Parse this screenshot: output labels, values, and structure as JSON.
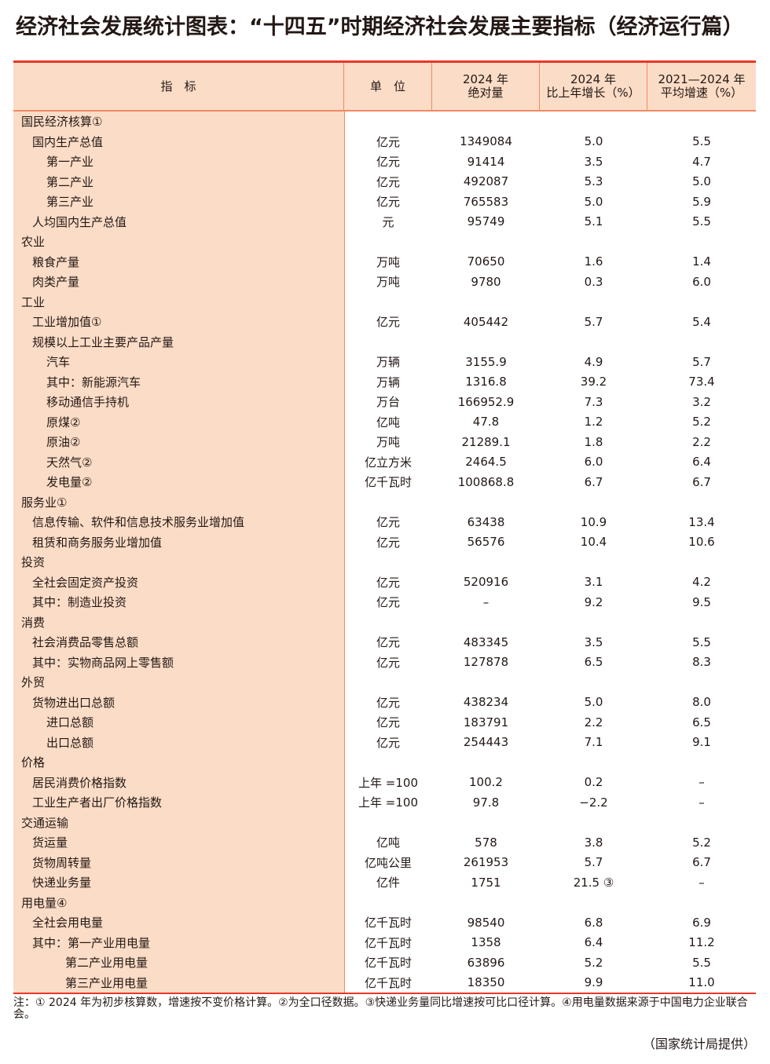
{
  "title": "经济社会发展统计图表：“十四五”时期经济社会发展主要指标（经济运行篇）",
  "headers": [
    "指　标",
    "单　位",
    "2024 年\n绝对量",
    "2024 年\n比上年增长（%）",
    "2021—2024 年\n平均增速（%）"
  ],
  "rows": [
    [
      "国民经济核算①",
      0,
      "",
      "",
      "",
      ""
    ],
    [
      "国内生产总值",
      1,
      "亿元",
      "1349084",
      "5.0",
      "5.5"
    ],
    [
      "第一产业",
      2,
      "亿元",
      "91414",
      "3.5",
      "4.7"
    ],
    [
      "第二产业",
      2,
      "亿元",
      "492087",
      "5.3",
      "5.0"
    ],
    [
      "第三产业",
      2,
      "亿元",
      "765583",
      "5.0",
      "5.9"
    ],
    [
      "人均国内生产总值",
      1,
      "元",
      "95749",
      "5.1",
      "5.5"
    ],
    [
      "农业",
      0,
      "",
      "",
      "",
      ""
    ],
    [
      "粮食产量",
      1,
      "万吨",
      "70650",
      "1.6",
      "1.4"
    ],
    [
      "肉类产量",
      1,
      "万吨",
      "9780",
      "0.3",
      "6.0"
    ],
    [
      "工业",
      0,
      "",
      "",
      "",
      ""
    ],
    [
      "工业增加值①",
      1,
      "亿元",
      "405442",
      "5.7",
      "5.4"
    ],
    [
      "规模以上工业主要产品产量",
      1,
      "",
      "",
      "",
      ""
    ],
    [
      "汽车",
      2,
      "万辆",
      "3155.9",
      "4.9",
      "5.7"
    ],
    [
      "其中：新能源汽车",
      2,
      "万辆",
      "1316.8",
      "39.2",
      "73.4"
    ],
    [
      "移动通信手持机",
      2,
      "万台",
      "166952.9",
      "7.3",
      "3.2"
    ],
    [
      "原煤②",
      2,
      "亿吨",
      "47.8",
      "1.2",
      "5.2"
    ],
    [
      "原油②",
      2,
      "万吨",
      "21289.1",
      "1.8",
      "2.2"
    ],
    [
      "天然气②",
      2,
      "亿立方米",
      "2464.5",
      "6.0",
      "6.4"
    ],
    [
      "发电量②",
      2,
      "亿千瓦时",
      "100868.8",
      "6.7",
      "6.7"
    ],
    [
      "服务业①",
      0,
      "",
      "",
      "",
      ""
    ],
    [
      "信息传输、软件和信息技术服务业增加值",
      1,
      "亿元",
      "63438",
      "10.9",
      "13.4"
    ],
    [
      "租赁和商务服务业增加值",
      1,
      "亿元",
      "56576",
      "10.4",
      "10.6"
    ],
    [
      "投资",
      0,
      "",
      "",
      "",
      ""
    ],
    [
      "全社会固定资产投资",
      1,
      "亿元",
      "520916",
      "3.1",
      "4.2"
    ],
    [
      "其中：制造业投资",
      1,
      "亿元",
      "–",
      "9.2",
      "9.5"
    ],
    [
      "消费",
      0,
      "",
      "",
      "",
      ""
    ],
    [
      "社会消费品零售总额",
      1,
      "亿元",
      "483345",
      "3.5",
      "5.5"
    ],
    [
      "其中：实物商品网上零售额",
      1,
      "亿元",
      "127878",
      "6.5",
      "8.3"
    ],
    [
      "外贸",
      0,
      "",
      "",
      "",
      ""
    ],
    [
      "货物进出口总额",
      1,
      "亿元",
      "438234",
      "5.0",
      "8.0"
    ],
    [
      "进口总额",
      2,
      "亿元",
      "183791",
      "2.2",
      "6.5"
    ],
    [
      "出口总额",
      2,
      "亿元",
      "254443",
      "7.1",
      "9.1"
    ],
    [
      "价格",
      0,
      "",
      "",
      "",
      ""
    ],
    [
      "居民消费价格指数",
      1,
      "上年 =100",
      "100.2",
      "0.2",
      "–"
    ],
    [
      "工业生产者出厂价格指数",
      1,
      "上年 =100",
      "97.8",
      "−2.2",
      "–"
    ],
    [
      "交通运输",
      0,
      "",
      "",
      "",
      ""
    ],
    [
      "货运量",
      1,
      "亿吨",
      "578",
      "3.8",
      "5.2"
    ],
    [
      "货物周转量",
      1,
      "亿吨公里",
      "261953",
      "5.7",
      "6.7"
    ],
    [
      "快递业务量",
      1,
      "亿件",
      "1751",
      "21.5 ③",
      "–"
    ],
    [
      "用电量④",
      0,
      "",
      "",
      "",
      ""
    ],
    [
      "全社会用电量",
      1,
      "亿千瓦时",
      "98540",
      "6.8",
      "6.9"
    ],
    [
      "其中：第一产业用电量",
      1,
      "亿千瓦时",
      "1358",
      "6.4",
      "11.2"
    ],
    [
      "第二产业用电量",
      3,
      "亿千瓦时",
      "63896",
      "5.2",
      "5.5"
    ],
    [
      "第三产业用电量",
      3,
      "亿千瓦时",
      "18350",
      "9.9",
      "11.0"
    ]
  ],
  "note": "注：① 2024 年为初步核算数，增速按不变价格计算。②为全口径数据。③快递业务量同比增速按可比口径计算。④用电量数据来源于中国电力企业联合会。",
  "source": "（国家统计局提供）",
  "colors": {
    "accent_line": "#e83828",
    "header_bg": "#fbdcc6",
    "grid": "#f08a64"
  }
}
